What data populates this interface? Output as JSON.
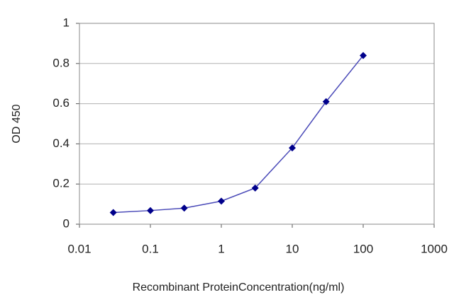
{
  "chart_data": {
    "type": "line",
    "xlabel": "Recombinant ProteinConcentration(ng/ml)",
    "ylabel": "OD 450",
    "x": [
      0.03,
      0.1,
      0.3,
      1,
      3,
      10,
      30,
      100
    ],
    "series": [
      {
        "color": "#4a4ab8",
        "marker_color": "#00008b",
        "values": [
          0.058,
          0.068,
          0.08,
          0.115,
          0.18,
          0.38,
          0.61,
          0.84
        ]
      }
    ],
    "xscale": "log",
    "xlim": [
      0.01,
      1000
    ],
    "xticks": [
      0.01,
      0.1,
      1,
      10,
      100,
      1000
    ],
    "ylim": [
      0,
      1
    ],
    "yticks": [
      0,
      0.2,
      0.4,
      0.6,
      0.8,
      1
    ],
    "grid": true
  }
}
